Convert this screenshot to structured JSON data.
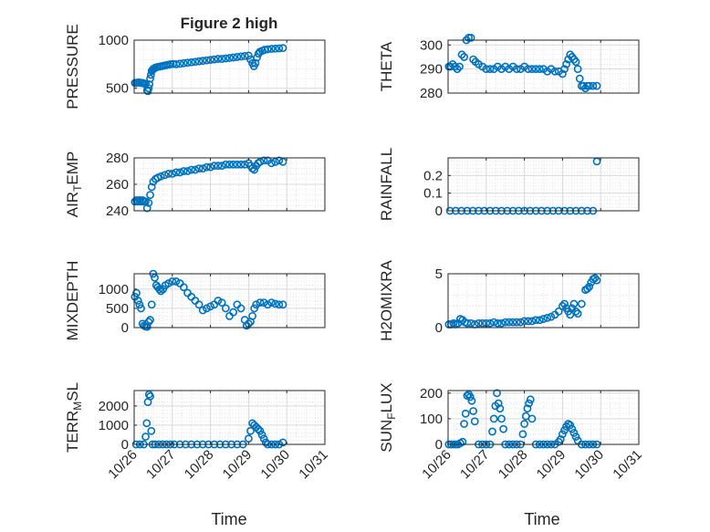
{
  "figure_title": "Figure 2 high",
  "time_label": "Time",
  "time_ticks": [
    "10/26",
    "10/27",
    "10/28",
    "10/29",
    "10/30",
    "10/31"
  ],
  "colors": {
    "marker": "#0072BD",
    "grid": "#d9d9d9",
    "axis": "#262626"
  },
  "chart_data": [
    {
      "id": "pressure",
      "type": "scatter",
      "ylabel_parts": [
        [
          "PRESSURE",
          "n"
        ]
      ],
      "ylim": [
        450,
        1000
      ],
      "yticks": [
        500,
        1000
      ],
      "yticklabels": [
        "500",
        "1000"
      ],
      "grid": true,
      "xlim_days": [
        0,
        5
      ],
      "series": [
        {
          "x": [
            0.02,
            0.06,
            0.1,
            0.14,
            0.18,
            0.22,
            0.26,
            0.3,
            0.34,
            0.36,
            0.38,
            0.4,
            0.42,
            0.44,
            0.46,
            0.48,
            0.5,
            0.52,
            0.54,
            0.56,
            0.6,
            0.66,
            0.72,
            0.78,
            0.84,
            0.9,
            0.96,
            1.02,
            1.1,
            1.2,
            1.3,
            1.4,
            1.5,
            1.6,
            1.7,
            1.8,
            1.9,
            2.0,
            2.1,
            2.2,
            2.3,
            2.4,
            2.5,
            2.6,
            2.7,
            2.8,
            2.9,
            3.0,
            3.05,
            3.1,
            3.14,
            3.18,
            3.22,
            3.26,
            3.3,
            3.36,
            3.42,
            3.5,
            3.6,
            3.7,
            3.8,
            3.9
          ],
          "y": [
            555,
            555,
            560,
            560,
            555,
            555,
            550,
            545,
            480,
            470,
            500,
            540,
            600,
            640,
            680,
            690,
            700,
            705,
            710,
            715,
            720,
            725,
            730,
            735,
            740,
            745,
            750,
            752,
            750,
            755,
            760,
            765,
            770,
            775,
            780,
            785,
            790,
            795,
            800,
            805,
            805,
            810,
            815,
            820,
            825,
            830,
            835,
            840,
            800,
            760,
            730,
            760,
            820,
            860,
            880,
            890,
            900,
            905,
            910,
            912,
            915,
            918
          ]
        }
      ]
    },
    {
      "id": "theta",
      "type": "scatter",
      "ylabel_parts": [
        [
          "THETA",
          "n"
        ]
      ],
      "ylim": [
        280,
        302
      ],
      "yticks": [
        280,
        290,
        300
      ],
      "yticklabels": [
        "280",
        "290",
        "300"
      ],
      "grid": true,
      "xlim_days": [
        0,
        5
      ],
      "series": [
        {
          "x": [
            0.02,
            0.06,
            0.12,
            0.18,
            0.24,
            0.3,
            0.36,
            0.42,
            0.48,
            0.54,
            0.6,
            0.66,
            0.72,
            0.8,
            0.9,
            1.0,
            1.1,
            1.2,
            1.3,
            1.4,
            1.5,
            1.6,
            1.7,
            1.8,
            1.9,
            2.0,
            2.1,
            2.2,
            2.3,
            2.4,
            2.5,
            2.6,
            2.7,
            2.8,
            2.9,
            3.0,
            3.05,
            3.1,
            3.15,
            3.2,
            3.25,
            3.3,
            3.35,
            3.4,
            3.45,
            3.5,
            3.55,
            3.6,
            3.65,
            3.7,
            3.8,
            3.9
          ],
          "y": [
            291,
            291,
            292,
            291,
            290,
            291,
            296,
            295,
            302,
            303,
            303,
            294,
            293,
            292,
            291,
            290,
            290,
            290,
            291,
            290,
            291,
            290,
            291,
            290,
            290,
            291,
            290,
            290,
            290,
            290,
            290,
            289,
            290,
            289,
            289,
            288,
            290,
            292,
            294,
            296,
            295,
            294,
            293,
            290,
            286,
            283,
            283,
            282,
            283,
            283,
            283,
            283
          ]
        }
      ]
    },
    {
      "id": "air_temp",
      "type": "scatter",
      "ylabel_parts": [
        [
          "AIR",
          "n"
        ],
        [
          "T",
          "sub"
        ],
        [
          "EMP",
          "n"
        ]
      ],
      "ylim": [
        240,
        280
      ],
      "yticks": [
        240,
        260,
        280
      ],
      "yticklabels": [
        "240",
        "260",
        "280"
      ],
      "grid": true,
      "xlim_days": [
        0,
        5
      ],
      "series": [
        {
          "x": [
            0.02,
            0.06,
            0.1,
            0.14,
            0.18,
            0.22,
            0.26,
            0.3,
            0.34,
            0.38,
            0.42,
            0.46,
            0.5,
            0.56,
            0.62,
            0.7,
            0.8,
            0.9,
            1.0,
            1.1,
            1.2,
            1.3,
            1.4,
            1.5,
            1.6,
            1.7,
            1.8,
            1.9,
            2.0,
            2.1,
            2.2,
            2.3,
            2.4,
            2.5,
            2.6,
            2.7,
            2.8,
            2.9,
            3.0,
            3.05,
            3.1,
            3.15,
            3.2,
            3.25,
            3.3,
            3.4,
            3.5,
            3.6,
            3.7,
            3.8,
            3.9
          ],
          "y": [
            247,
            248,
            247,
            248,
            247,
            248,
            247,
            247,
            242,
            246,
            252,
            258,
            262,
            264,
            265,
            266,
            267,
            268,
            268,
            269,
            269,
            270,
            270,
            271,
            271,
            272,
            272,
            273,
            273,
            274,
            274,
            274,
            275,
            275,
            275,
            275,
            275,
            275,
            276,
            274,
            272,
            271,
            274,
            276,
            277,
            278,
            278,
            276,
            277,
            278,
            277
          ]
        }
      ]
    },
    {
      "id": "rainfall",
      "type": "scatter",
      "ylabel_parts": [
        [
          "RAINFALL",
          "n"
        ]
      ],
      "ylim": [
        0,
        0.3
      ],
      "yticks": [
        0,
        0.1,
        0.2
      ],
      "yticklabels": [
        "0",
        "0.1",
        "0.2"
      ],
      "grid": true,
      "xlim_days": [
        0,
        5
      ],
      "series": [
        {
          "x": [
            0.05,
            0.2,
            0.35,
            0.5,
            0.65,
            0.8,
            0.95,
            1.1,
            1.25,
            1.4,
            1.55,
            1.7,
            1.85,
            2.0,
            2.15,
            2.3,
            2.45,
            2.6,
            2.75,
            2.9,
            3.05,
            3.2,
            3.35,
            3.5,
            3.65,
            3.8,
            3.9
          ],
          "y": [
            0,
            0,
            0,
            0,
            0,
            0,
            0,
            0,
            0,
            0,
            0,
            0,
            0,
            0,
            0,
            0,
            0,
            0,
            0,
            0,
            0,
            0,
            0,
            0,
            0,
            0,
            0.28
          ]
        }
      ]
    },
    {
      "id": "mixdepth",
      "type": "scatter",
      "ylabel_parts": [
        [
          "MIXDEPTH",
          "n"
        ]
      ],
      "ylim": [
        0,
        1400
      ],
      "yticks": [
        0,
        500,
        1000
      ],
      "yticklabels": [
        "0",
        "500",
        "1000"
      ],
      "grid": true,
      "xlim_days": [
        0,
        5
      ],
      "series": [
        {
          "x": [
            0.02,
            0.06,
            0.1,
            0.14,
            0.18,
            0.22,
            0.26,
            0.3,
            0.34,
            0.38,
            0.42,
            0.46,
            0.5,
            0.54,
            0.58,
            0.62,
            0.66,
            0.7,
            0.76,
            0.82,
            0.9,
            1.0,
            1.1,
            1.2,
            1.3,
            1.4,
            1.5,
            1.6,
            1.7,
            1.8,
            1.9,
            2.0,
            2.1,
            2.2,
            2.3,
            2.4,
            2.5,
            2.6,
            2.7,
            2.8,
            2.9,
            2.95,
            3.0,
            3.05,
            3.1,
            3.15,
            3.2,
            3.3,
            3.4,
            3.5,
            3.6,
            3.7,
            3.8,
            3.9
          ],
          "y": [
            800,
            900,
            700,
            600,
            500,
            100,
            50,
            30,
            20,
            150,
            200,
            600,
            1400,
            1300,
            1100,
            1050,
            1000,
            950,
            1000,
            1100,
            1150,
            1200,
            1200,
            1150,
            1050,
            900,
            800,
            700,
            600,
            450,
            500,
            550,
            600,
            700,
            650,
            500,
            300,
            400,
            600,
            500,
            200,
            50,
            100,
            150,
            300,
            500,
            600,
            650,
            650,
            600,
            650,
            620,
            600,
            600
          ]
        }
      ]
    },
    {
      "id": "h2omixra",
      "type": "scatter",
      "ylabel_parts": [
        [
          "H2OMIXRA",
          "n"
        ]
      ],
      "ylim": [
        0,
        5
      ],
      "yticks": [
        0,
        5
      ],
      "yticklabels": [
        "0",
        "5"
      ],
      "grid": true,
      "xlim_days": [
        0,
        5
      ],
      "series": [
        {
          "x": [
            0.02,
            0.08,
            0.14,
            0.2,
            0.26,
            0.32,
            0.38,
            0.44,
            0.5,
            0.6,
            0.7,
            0.8,
            0.9,
            1.0,
            1.1,
            1.2,
            1.3,
            1.4,
            1.5,
            1.6,
            1.7,
            1.8,
            1.9,
            2.0,
            2.1,
            2.2,
            2.3,
            2.4,
            2.5,
            2.6,
            2.7,
            2.8,
            2.9,
            3.0,
            3.05,
            3.1,
            3.15,
            3.2,
            3.25,
            3.3,
            3.35,
            3.4,
            3.5,
            3.6,
            3.65,
            3.7,
            3.75,
            3.8,
            3.85,
            3.9
          ],
          "y": [
            0.3,
            0.3,
            0.4,
            0.3,
            0.4,
            0.8,
            0.7,
            0.5,
            0.4,
            0.4,
            0.3,
            0.4,
            0.4,
            0.4,
            0.4,
            0.5,
            0.4,
            0.4,
            0.5,
            0.5,
            0.5,
            0.5,
            0.5,
            0.6,
            0.6,
            0.6,
            0.7,
            0.7,
            0.8,
            0.9,
            1.0,
            1.2,
            1.5,
            2.0,
            2.2,
            1.8,
            1.5,
            1.2,
            1.8,
            2.2,
            1.5,
            1.3,
            2.2,
            3.5,
            3.6,
            3.8,
            4.2,
            4.5,
            4.6,
            4.4
          ]
        }
      ]
    },
    {
      "id": "terr_msl",
      "type": "scatter",
      "ylabel_parts": [
        [
          "TERR",
          "n"
        ],
        [
          "M",
          "sub"
        ],
        [
          "SL",
          "n"
        ]
      ],
      "ylim": [
        0,
        2800
      ],
      "yticks": [
        0,
        1000,
        2000
      ],
      "yticklabels": [
        "0",
        "1000",
        "2000"
      ],
      "grid": true,
      "xlim_days": [
        0,
        5
      ],
      "series": [
        {
          "x": [
            0.05,
            0.15,
            0.25,
            0.3,
            0.33,
            0.36,
            0.39,
            0.42,
            0.45,
            0.48,
            0.55,
            0.65,
            0.75,
            0.85,
            0.95,
            1.05,
            1.2,
            1.35,
            1.5,
            1.65,
            1.8,
            1.95,
            2.1,
            2.25,
            2.4,
            2.55,
            2.7,
            2.85,
            3.0,
            3.05,
            3.1,
            3.15,
            3.2,
            3.25,
            3.3,
            3.35,
            3.4,
            3.45,
            3.5,
            3.6,
            3.7,
            3.8,
            3.9
          ],
          "y": [
            0,
            0,
            0,
            400,
            1100,
            2200,
            2600,
            2500,
            700,
            0,
            0,
            0,
            0,
            0,
            0,
            0,
            0,
            0,
            0,
            0,
            0,
            0,
            0,
            0,
            0,
            0,
            0,
            0,
            300,
            700,
            1100,
            1000,
            900,
            800,
            700,
            500,
            300,
            100,
            0,
            0,
            0,
            0,
            100
          ]
        }
      ]
    },
    {
      "id": "sun_flux",
      "type": "scatter",
      "ylabel_parts": [
        [
          "SUN",
          "n"
        ],
        [
          "F",
          "sub"
        ],
        [
          "LUX",
          "n"
        ]
      ],
      "ylim": [
        0,
        210
      ],
      "yticks": [
        0,
        100,
        200
      ],
      "yticklabels": [
        "0",
        "100",
        "200"
      ],
      "grid": true,
      "xlim_days": [
        0,
        5
      ],
      "series": [
        {
          "x": [
            0.02,
            0.08,
            0.14,
            0.2,
            0.26,
            0.32,
            0.38,
            0.42,
            0.46,
            0.5,
            0.54,
            0.58,
            0.62,
            0.66,
            0.7,
            0.8,
            0.9,
            1.0,
            1.1,
            1.16,
            1.2,
            1.24,
            1.28,
            1.32,
            1.36,
            1.4,
            1.45,
            1.5,
            1.6,
            1.7,
            1.8,
            1.9,
            1.96,
            2.0,
            2.04,
            2.08,
            2.12,
            2.16,
            2.2,
            2.3,
            2.4,
            2.5,
            2.6,
            2.7,
            2.8,
            2.9,
            2.95,
            3.0,
            3.05,
            3.1,
            3.15,
            3.2,
            3.25,
            3.3,
            3.35,
            3.4,
            3.5,
            3.6,
            3.7,
            3.8,
            3.9
          ],
          "y": [
            0,
            0,
            0,
            0,
            0,
            5,
            10,
            80,
            120,
            190,
            195,
            185,
            170,
            130,
            90,
            0,
            0,
            0,
            0,
            50,
            100,
            150,
            200,
            160,
            140,
            100,
            60,
            0,
            0,
            0,
            0,
            0,
            40,
            80,
            110,
            140,
            160,
            175,
            100,
            0,
            0,
            0,
            0,
            0,
            0,
            10,
            20,
            40,
            55,
            70,
            80,
            75,
            60,
            45,
            30,
            15,
            0,
            0,
            0,
            0,
            0
          ]
        }
      ]
    }
  ]
}
